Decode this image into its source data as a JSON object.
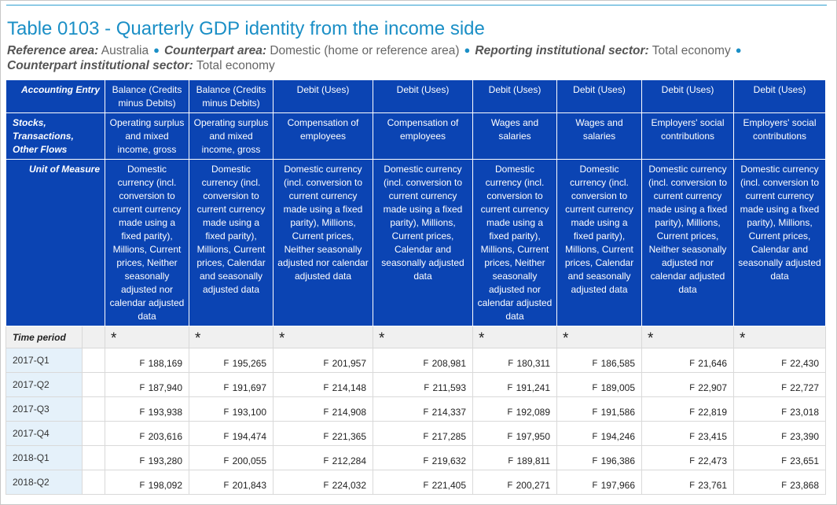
{
  "title": "Table 0103 - Quarterly GDP identity from the income side",
  "filters": [
    {
      "label": "Reference area:",
      "value": "Australia"
    },
    {
      "label": "Counterpart area:",
      "value": "Domestic (home or reference area)"
    },
    {
      "label": "Reporting institutional sector:",
      "value": "Total economy"
    },
    {
      "label": "Counterpart institutional sector:",
      "value": "Total economy"
    }
  ],
  "row_labels": {
    "accounting_entry": "Accounting Entry",
    "stocks": "Stocks, Transactions, Other Flows",
    "unit": "Unit of Measure",
    "time_period": "Time period"
  },
  "columns": [
    {
      "entry": "Balance (Credits minus Debits)",
      "stock": "Operating surplus and mixed income, gross",
      "unit": "Domestic currency (incl. conversion to current currency made using a fixed parity), Millions, Current prices, Neither seasonally adjusted nor calendar adjusted data"
    },
    {
      "entry": "Balance (Credits minus Debits)",
      "stock": "Operating surplus and mixed income, gross",
      "unit": "Domestic currency (incl. conversion to current currency made using a fixed parity), Millions, Current prices, Calendar and seasonally adjusted data"
    },
    {
      "entry": "Debit (Uses)",
      "stock": "Compensation of employees",
      "unit": "Domestic currency (incl. conversion to current currency made using a fixed parity), Millions, Current prices, Neither seasonally adjusted nor calendar adjusted data"
    },
    {
      "entry": "Debit (Uses)",
      "stock": "Compensation of employees",
      "unit": "Domestic currency (incl. conversion to current currency made using a fixed parity), Millions, Current prices, Calendar and seasonally adjusted data"
    },
    {
      "entry": "Debit (Uses)",
      "stock": "Wages and salaries",
      "unit": "Domestic currency (incl. conversion to current currency made using a fixed parity), Millions, Current prices, Neither seasonally adjusted nor calendar adjusted data"
    },
    {
      "entry": "Debit (Uses)",
      "stock": "Wages and salaries",
      "unit": "Domestic currency (incl. conversion to current currency made using a fixed parity), Millions, Current prices, Calendar and seasonally adjusted data"
    },
    {
      "entry": "Debit (Uses)",
      "stock": "Employers' social contributions",
      "unit": "Domestic currency (incl. conversion to current currency made using a fixed parity), Millions, Current prices, Neither seasonally adjusted nor calendar adjusted data"
    },
    {
      "entry": "Debit (Uses)",
      "stock": "Employers' social contributions",
      "unit": "Domestic currency (incl. conversion to current currency made using a fixed parity), Millions, Current prices, Calendar and seasonally adjusted data"
    }
  ],
  "star": "*",
  "flag": "F",
  "rows": [
    {
      "period": "2017-Q1",
      "values": [
        "188,169",
        "195,265",
        "201,957",
        "208,981",
        "180,311",
        "186,585",
        "21,646",
        "22,430"
      ]
    },
    {
      "period": "2017-Q2",
      "values": [
        "187,940",
        "191,697",
        "214,148",
        "211,593",
        "191,241",
        "189,005",
        "22,907",
        "22,727"
      ]
    },
    {
      "period": "2017-Q3",
      "values": [
        "193,938",
        "193,100",
        "214,908",
        "214,337",
        "192,089",
        "191,586",
        "22,819",
        "23,018"
      ]
    },
    {
      "period": "2017-Q4",
      "values": [
        "203,616",
        "194,474",
        "221,365",
        "217,285",
        "197,950",
        "194,246",
        "23,415",
        "23,390"
      ]
    },
    {
      "period": "2018-Q1",
      "values": [
        "193,280",
        "200,055",
        "212,284",
        "219,632",
        "189,811",
        "196,386",
        "22,473",
        "23,651"
      ]
    },
    {
      "period": "2018-Q2",
      "values": [
        "198,092",
        "201,843",
        "224,032",
        "221,405",
        "200,271",
        "197,966",
        "23,761",
        "23,868"
      ]
    }
  ]
}
